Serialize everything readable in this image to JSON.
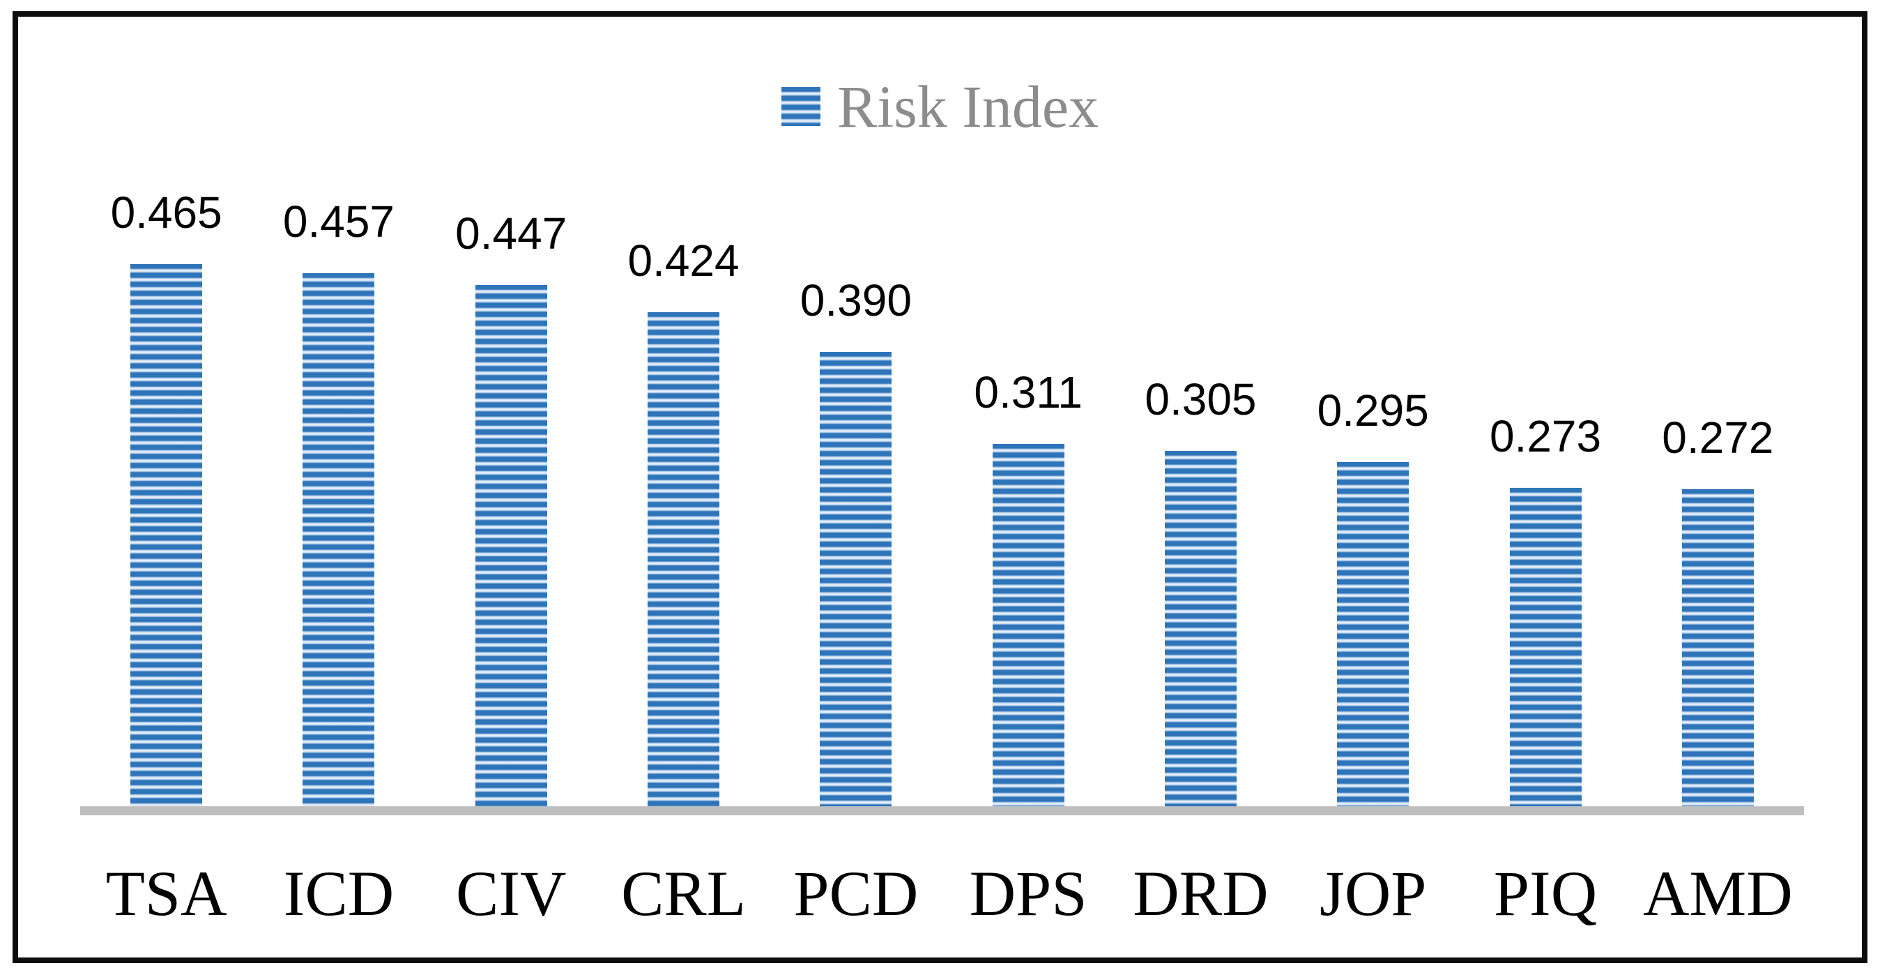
{
  "legend": {
    "label": "Risk Index"
  },
  "colors": {
    "bar_stripe_dark": "#2E74B9",
    "bar_stripe_light_edge": "#AECBEA",
    "bar_stripe_light_center": "#E9F0F9",
    "axis_line": "#BFBFBF",
    "legend_text": "#8C8C8C",
    "data_label": "#000000",
    "category_label": "#000000",
    "frame_border": "#0D0D0D"
  },
  "chart_data": {
    "type": "bar",
    "title": "",
    "xlabel": "",
    "ylabel": "",
    "categories": [
      "TSA",
      "ICD",
      "CIV",
      "CRL",
      "PCD",
      "DPS",
      "DRD",
      "JOP",
      "PIQ",
      "AMD"
    ],
    "series": [
      {
        "name": "Risk Index",
        "values": [
          0.465,
          0.457,
          0.447,
          0.424,
          0.39,
          0.311,
          0.305,
          0.295,
          0.273,
          0.272
        ]
      }
    ],
    "value_labels": [
      "0.465",
      "0.457",
      "0.447",
      "0.424",
      "0.390",
      "0.311",
      "0.305",
      "0.295",
      "0.273",
      "0.272"
    ],
    "ylim": [
      0,
      0.52
    ],
    "grid": false,
    "axes_visible": false,
    "legend_position": "top-center",
    "data_labels_position": "outside-end",
    "bar_fill_pattern": "horizontal-stripes"
  }
}
